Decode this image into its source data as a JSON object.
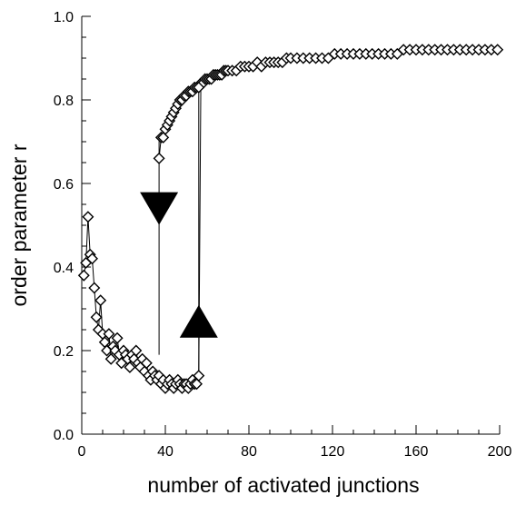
{
  "chart_data": {
    "type": "scatter",
    "title": "",
    "xlabel": "number of activated junctions",
    "ylabel": "order parameter r",
    "xlim": [
      0,
      200
    ],
    "ylim": [
      0.0,
      1.0
    ],
    "x_ticks": [
      "0",
      "40",
      "80",
      "120",
      "160",
      "200"
    ],
    "y_ticks": [
      "0.0",
      "0.2",
      "0.4",
      "0.6",
      "0.8",
      "1.0"
    ],
    "grid": false,
    "legend": "none",
    "marker": "open-diamond",
    "colors": {
      "line": "#000000",
      "marker_fill": "#ffffff",
      "arrow": "#000000"
    },
    "series": [
      {
        "x": [
          1,
          2,
          3,
          4,
          5,
          6,
          7,
          8,
          9,
          10,
          11,
          12,
          13,
          14,
          15,
          16,
          17,
          18,
          19,
          20,
          21,
          22,
          23,
          24,
          25,
          26,
          27,
          28,
          29,
          30,
          31,
          32,
          33,
          34,
          35,
          36,
          37,
          38,
          39,
          40,
          41,
          42,
          43,
          44,
          45,
          46,
          47,
          48,
          49,
          50,
          51,
          52,
          53,
          54,
          55,
          56,
          57,
          58,
          59,
          60,
          61,
          62,
          63,
          64,
          65,
          66,
          67,
          68,
          69,
          70,
          72,
          74,
          76,
          78,
          80,
          82,
          84,
          86,
          88,
          90,
          92,
          94,
          96,
          98,
          100,
          103,
          106,
          109,
          112,
          115,
          118,
          121,
          124,
          127,
          130,
          133,
          136,
          139,
          142,
          145,
          148,
          151,
          154,
          157,
          160,
          163,
          166,
          169,
          172,
          175,
          178,
          181,
          184,
          187,
          190,
          193,
          196,
          199
        ],
        "y": [
          0.38,
          0.41,
          0.52,
          0.43,
          0.42,
          0.35,
          0.28,
          0.25,
          0.32,
          0.24,
          0.22,
          0.2,
          0.24,
          0.18,
          0.21,
          0.2,
          0.23,
          0.19,
          0.17,
          0.2,
          0.19,
          0.18,
          0.16,
          0.19,
          0.18,
          0.2,
          0.17,
          0.16,
          0.18,
          0.15,
          0.17,
          0.14,
          0.13,
          0.15,
          0.14,
          0.13,
          0.14,
          0.12,
          0.13,
          0.11,
          0.12,
          0.13,
          0.12,
          0.11,
          0.12,
          0.13,
          0.12,
          0.11,
          0.12,
          0.12,
          0.11,
          0.12,
          0.13,
          0.12,
          0.12,
          0.14,
          0.84,
          0.84,
          0.85,
          0.85,
          0.85,
          0.85,
          0.86,
          0.86,
          0.86,
          0.86,
          0.86,
          0.87,
          0.87,
          0.87,
          0.87,
          0.87,
          0.88,
          0.88,
          0.88,
          0.88,
          0.89,
          0.88,
          0.89,
          0.89,
          0.89,
          0.89,
          0.89,
          0.9,
          0.9,
          0.9,
          0.9,
          0.9,
          0.9,
          0.9,
          0.9,
          0.91,
          0.91,
          0.91,
          0.91,
          0.91,
          0.91,
          0.91,
          0.91,
          0.91,
          0.91,
          0.91,
          0.92,
          0.92,
          0.92,
          0.92,
          0.92,
          0.92,
          0.92,
          0.92,
          0.92,
          0.92,
          0.92,
          0.92,
          0.92,
          0.92,
          0.92,
          0.92
        ]
      },
      {
        "x": [
          37,
          38,
          39,
          40,
          41,
          42,
          43,
          44,
          45,
          46,
          47,
          48,
          49,
          50,
          51,
          52,
          53,
          54,
          55,
          56
        ],
        "y": [
          0.66,
          0.71,
          0.71,
          0.73,
          0.74,
          0.75,
          0.76,
          0.77,
          0.78,
          0.79,
          0.8,
          0.8,
          0.81,
          0.81,
          0.82,
          0.82,
          0.82,
          0.83,
          0.83,
          0.83
        ]
      }
    ],
    "hysteresis": {
      "down_path": {
        "x": 37,
        "y_from": 0.71,
        "y_to": 0.19
      },
      "up_path": {
        "x": 56,
        "y_from": 0.14,
        "y_to": 0.84
      },
      "down_arrow": {
        "x": 37,
        "y": 0.54,
        "direction": "down"
      },
      "up_arrow": {
        "x": 56,
        "y": 0.27,
        "direction": "up"
      }
    }
  }
}
